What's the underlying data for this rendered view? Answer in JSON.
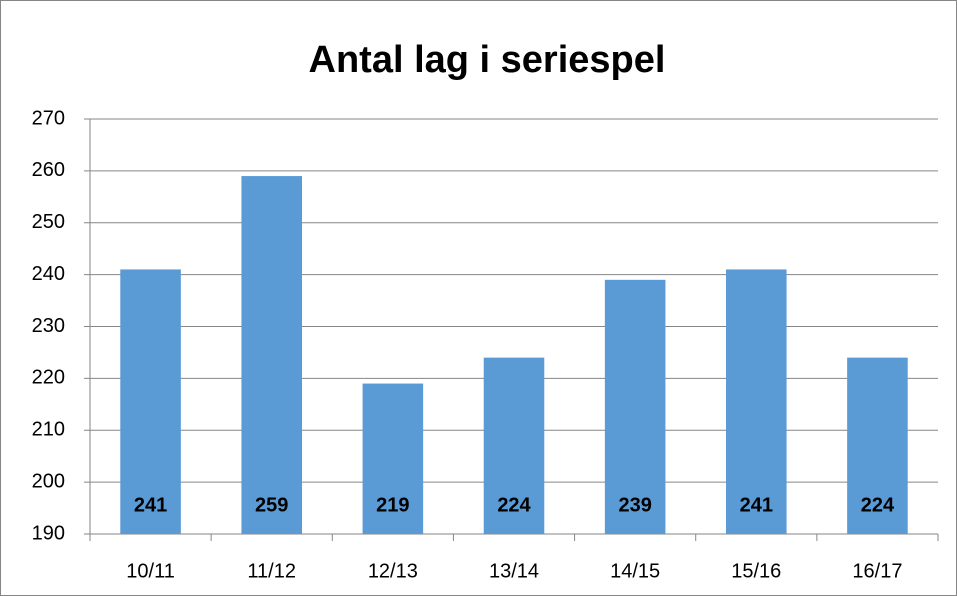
{
  "chart_data": {
    "type": "bar",
    "title": "Antal lag i seriespel",
    "categories": [
      "10/11",
      "11/12",
      "12/13",
      "13/14",
      "14/15",
      "15/16",
      "16/17"
    ],
    "values": [
      241,
      259,
      219,
      224,
      239,
      241,
      224
    ],
    "color": "#5b9bd5",
    "ylim": [
      190,
      270
    ],
    "yticks": [
      190,
      200,
      210,
      220,
      230,
      240,
      250,
      260,
      270
    ],
    "grid": true
  }
}
